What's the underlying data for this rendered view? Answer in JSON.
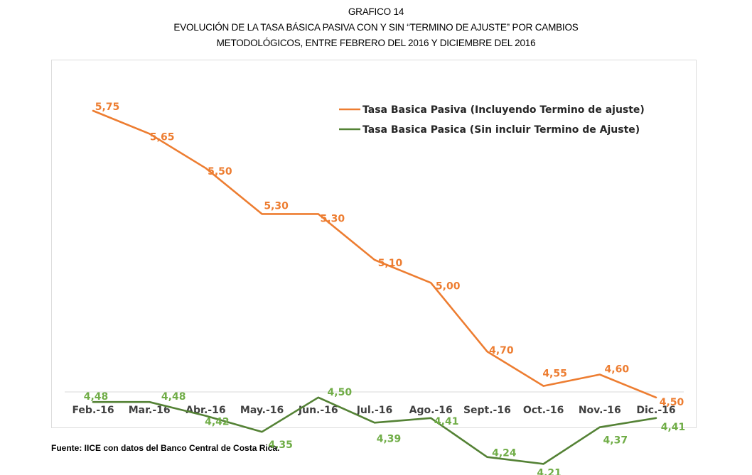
{
  "header": {
    "line1": "GRAFICO 14",
    "line2": "EVOLUCIÓN DE LA TASA BÁSICA PASIVA CON Y SIN “TERMINO DE AJUSTE” POR CAMBIOS",
    "line3": "METODOLÓGICOS, ENTRE FEBRERO DEL 2016 Y DICIEMBRE DEL 2016"
  },
  "footer": {
    "source": "Fuente: IICE con datos del Banco Central de Costa Rica."
  },
  "chart_data": {
    "type": "line",
    "title": "GRAFICO 14 EVOLUCIÓN DE LA TASA BÁSICA PASIVA CON Y SIN “TERMINO DE AJUSTE” POR CAMBIOS METODOLÓGICOS, ENTRE FEBRERO DEL 2016 Y DICIEMBRE DEL 2016",
    "categories": [
      "Feb.-16",
      "Mar.-16",
      "Abr.-16",
      "May.-16",
      "Jun.-16",
      "Jul.-16",
      "Ago.-16",
      "Sept.-16",
      "Oct.-16",
      "Nov.-16",
      "Dic.-16"
    ],
    "series": [
      {
        "name": "Tasa Basica Pasiva (Incluyendo Termino de ajuste)",
        "color": "#ED7D31",
        "label_color": "#ED7D31",
        "values": [
          5.75,
          5.65,
          5.5,
          5.3,
          5.3,
          5.1,
          5.0,
          4.7,
          4.55,
          4.6,
          4.5
        ],
        "labels": [
          "5,75",
          "5,65",
          "5,50",
          "5,30",
          "5,30",
          "5,10",
          "5,00",
          "4,70",
          "4,55",
          "4,60",
          "4,50"
        ]
      },
      {
        "name": "Tasa Basica Pasica (Sin incluir Termino de Ajuste)",
        "color": "#548235",
        "label_color": "#70AD47",
        "values": [
          4.48,
          4.48,
          4.42,
          4.35,
          4.5,
          4.39,
          4.41,
          4.24,
          4.21,
          4.37,
          4.41
        ],
        "labels": [
          "4,48",
          "4,48",
          "4,42",
          "4,35",
          "4,50",
          "4,39",
          "4,41",
          "4,24",
          "4,21",
          "4,37",
          "4,41"
        ]
      }
    ],
    "legend_position": "top-right",
    "grid": false
  }
}
